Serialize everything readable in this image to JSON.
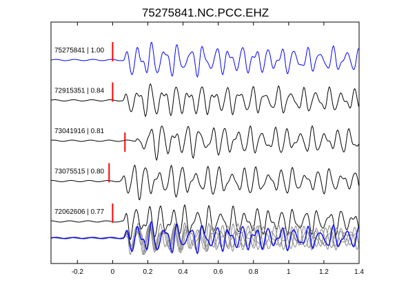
{
  "chart_data": {
    "type": "line",
    "title": "75275841.NC.PCC.EHZ",
    "xlabel": "",
    "ylabel": "",
    "xlim": [
      -0.35,
      1.4
    ],
    "xticks": [
      -0.2,
      0,
      0.2,
      0.4,
      0.6,
      0.8,
      1.0,
      1.2,
      1.4
    ],
    "xtick_labels": [
      "-0.2",
      "0",
      "0.2",
      "0.4",
      "0.6",
      "0.8",
      "1",
      "1.2",
      "1.4"
    ],
    "grid": false,
    "legend": "none",
    "colors": {
      "reference": "#0000ff",
      "trace": "#000000",
      "pick": "#ff0000",
      "overlay": "#888888"
    },
    "traces": [
      {
        "label": "75275841 | 1.00",
        "event_id": "75275841",
        "correlation": 1.0,
        "pick_time": 0.0,
        "color": "#0000ff"
      },
      {
        "label": "72915351 | 0.84",
        "event_id": "72915351",
        "correlation": 0.84,
        "pick_time": 0.0,
        "color": "#000000"
      },
      {
        "label": "73041916 | 0.81",
        "event_id": "73041916",
        "correlation": 0.81,
        "pick_time": 0.07,
        "color": "#000000"
      },
      {
        "label": "73075515 | 0.80",
        "event_id": "73075515",
        "correlation": 0.8,
        "pick_time": -0.02,
        "color": "#000000"
      },
      {
        "label": "72062606 | 0.77",
        "event_id": "72062606",
        "correlation": 0.77,
        "pick_time": 0.0,
        "color": "#000000"
      }
    ],
    "stack_overlay": true
  }
}
